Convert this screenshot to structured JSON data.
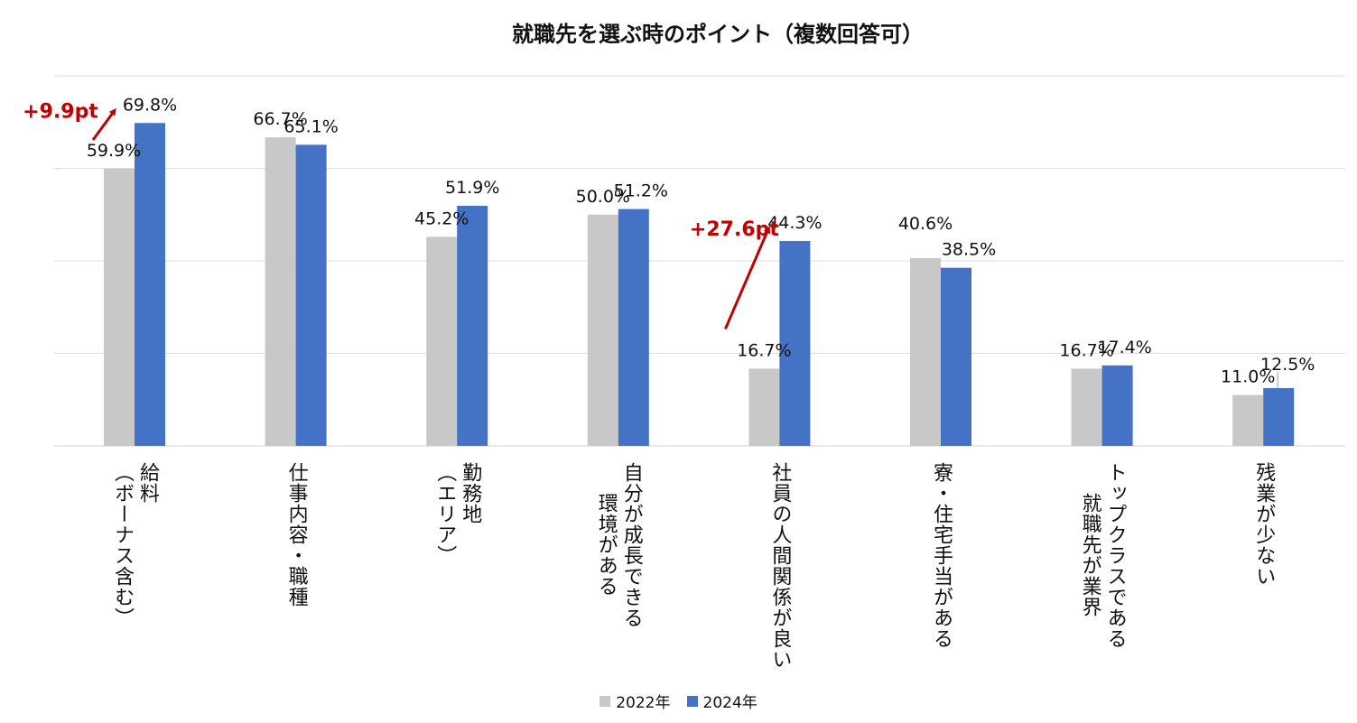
{
  "chart_data": {
    "type": "bar",
    "title": "就職先を選ぶ時のポイント（複数回答可）",
    "categories": [
      [
        "給料",
        "（ボーナス含む）"
      ],
      [
        "仕事内容・職種"
      ],
      [
        "勤務地",
        "（エリア）"
      ],
      [
        "自分が成長できる",
        "環境がある"
      ],
      [
        "社員の人間関係が良い"
      ],
      [
        "寮・住宅手当がある"
      ],
      [
        "トップクラスである",
        "就職先が業界"
      ],
      [
        "残業が少ない"
      ]
    ],
    "series": [
      {
        "name": "2022年",
        "color": "#c8c8c8",
        "values": [
          59.9,
          66.7,
          45.2,
          50.0,
          16.7,
          40.6,
          16.7,
          11.0
        ],
        "labels": [
          "59.9%",
          "66.7%",
          "45.2%",
          "50.0%",
          "16.7%",
          "40.6%",
          "16.7%",
          "11.0%"
        ]
      },
      {
        "name": "2024年",
        "color": "#4472c4",
        "values": [
          69.8,
          65.1,
          51.9,
          51.2,
          44.3,
          38.5,
          17.4,
          12.5
        ],
        "labels": [
          "69.8%",
          "65.1%",
          "51.9%",
          "51.2%",
          "44.3%",
          "38.5%",
          "17.4%",
          "12.5%"
        ]
      }
    ],
    "ylim": [
      0,
      80
    ],
    "grid": true,
    "legend": "bottom",
    "annotations": [
      {
        "text": "+9.9pt",
        "category_index": 0,
        "color": "#c00000"
      },
      {
        "text": "+27.6pt",
        "category_index": 4,
        "color": "#c00000"
      }
    ]
  }
}
